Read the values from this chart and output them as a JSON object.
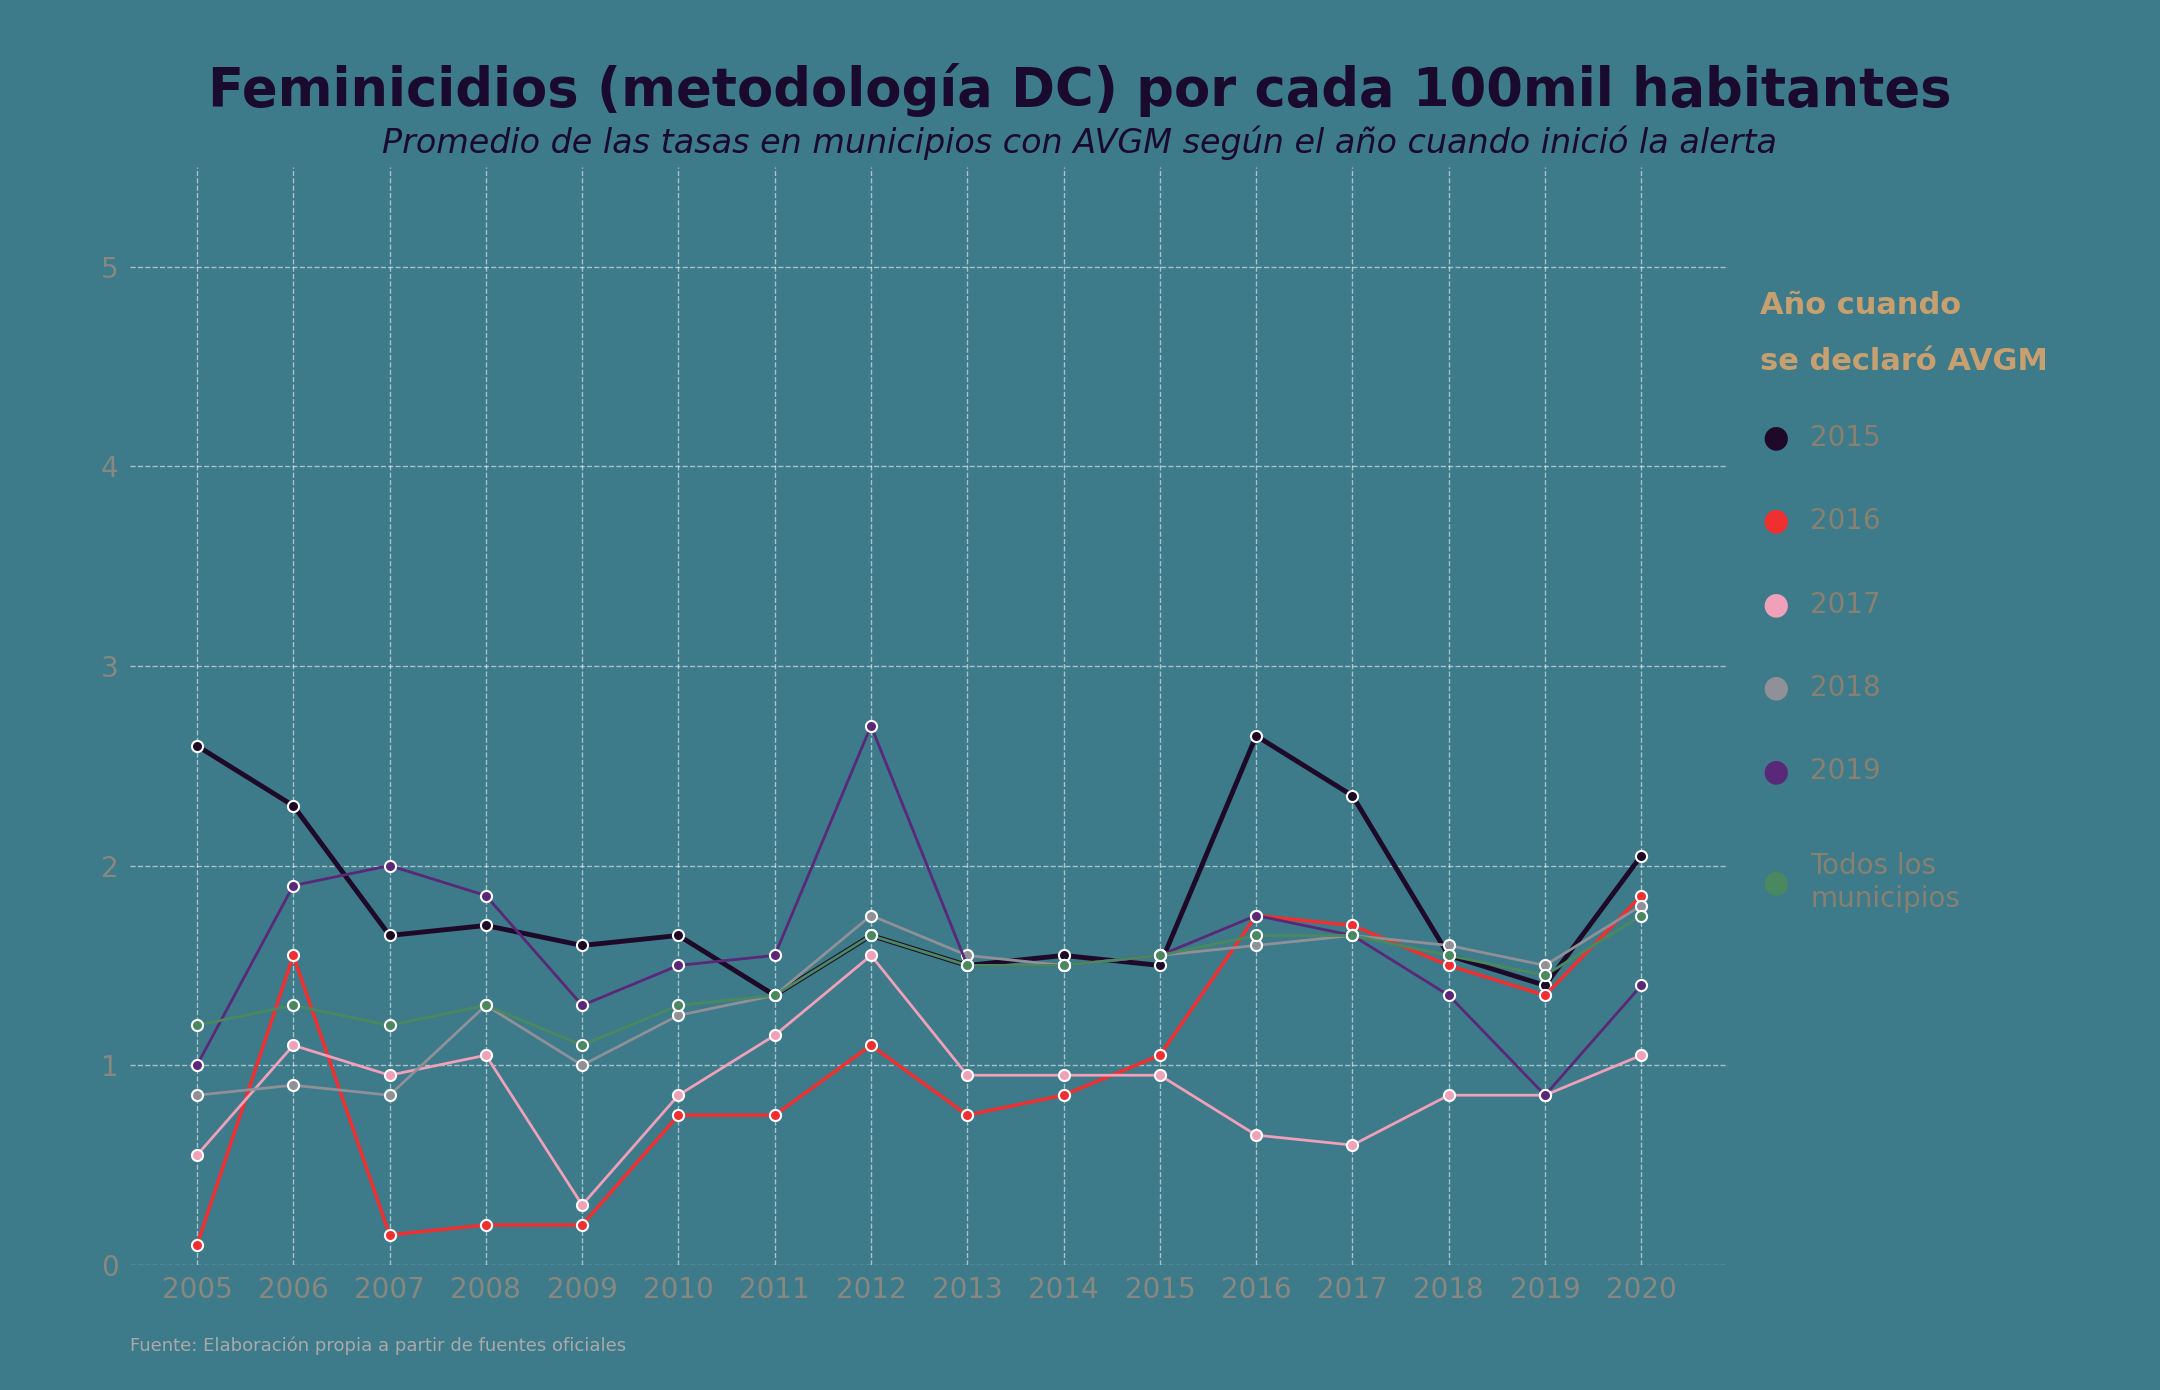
{
  "title": "Feminicidios (metodología DC) por cada 100mil habitantes",
  "subtitle": "Promedio de las tasas en municipios con AVGM según el año cuando inició la alerta",
  "footnote": "Fuente: Elaboración propia a partir de fuentes oficiales",
  "background_color": "#3d7a8a",
  "title_color": "#1a0a2e",
  "subtitle_color": "#1a0a2e",
  "legend_title_line1": "Año cuando",
  "legend_title_line2": "se declaró AVGM",
  "legend_title_color": "#c8a070",
  "legend_label_color": "#888070",
  "years": [
    2005,
    2006,
    2007,
    2008,
    2009,
    2010,
    2011,
    2012,
    2013,
    2014,
    2015,
    2016,
    2017,
    2018,
    2019,
    2020
  ],
  "series": {
    "2015": {
      "color": "#1e0a28",
      "linewidth": 3.5,
      "values": [
        2.6,
        2.3,
        1.65,
        1.7,
        1.6,
        1.65,
        1.35,
        1.65,
        1.5,
        1.55,
        1.5,
        2.65,
        2.35,
        1.55,
        1.4,
        2.05
      ]
    },
    "2016": {
      "color": "#f03030",
      "linewidth": 2.5,
      "values": [
        0.1,
        1.55,
        0.15,
        0.2,
        0.2,
        0.75,
        0.75,
        1.1,
        0.75,
        0.85,
        1.05,
        1.75,
        1.7,
        1.5,
        1.35,
        1.85
      ]
    },
    "2017": {
      "color": "#f0a0b8",
      "linewidth": 2.0,
      "values": [
        0.55,
        1.1,
        0.95,
        1.05,
        0.3,
        0.85,
        1.15,
        1.55,
        0.95,
        0.95,
        0.95,
        0.65,
        0.6,
        0.85,
        0.85,
        1.05
      ]
    },
    "2018": {
      "color": "#909098",
      "linewidth": 2.0,
      "values": [
        0.85,
        0.9,
        0.85,
        1.3,
        1.0,
        1.25,
        1.35,
        1.75,
        1.55,
        1.5,
        1.55,
        1.6,
        1.65,
        1.6,
        1.5,
        1.8
      ]
    },
    "2019": {
      "color": "#5a2878",
      "linewidth": 2.0,
      "values": [
        1.0,
        1.9,
        2.0,
        1.85,
        1.3,
        1.5,
        1.55,
        2.7,
        1.5,
        1.5,
        1.55,
        1.75,
        1.65,
        1.35,
        0.85,
        1.4
      ]
    },
    "Todos los municipios": {
      "color": "#4a8860",
      "linewidth": 2.0,
      "values": [
        1.2,
        1.3,
        1.2,
        1.3,
        1.1,
        1.3,
        1.35,
        1.65,
        1.5,
        1.5,
        1.55,
        1.65,
        1.65,
        1.55,
        1.45,
        1.75
      ]
    }
  },
  "ylim": [
    0,
    5.5
  ],
  "yticks": [
    0,
    1,
    2,
    3,
    4,
    5
  ],
  "grid_color": "#ffffff",
  "tick_color": "#888880",
  "footnote_color": "#aaaaaa"
}
